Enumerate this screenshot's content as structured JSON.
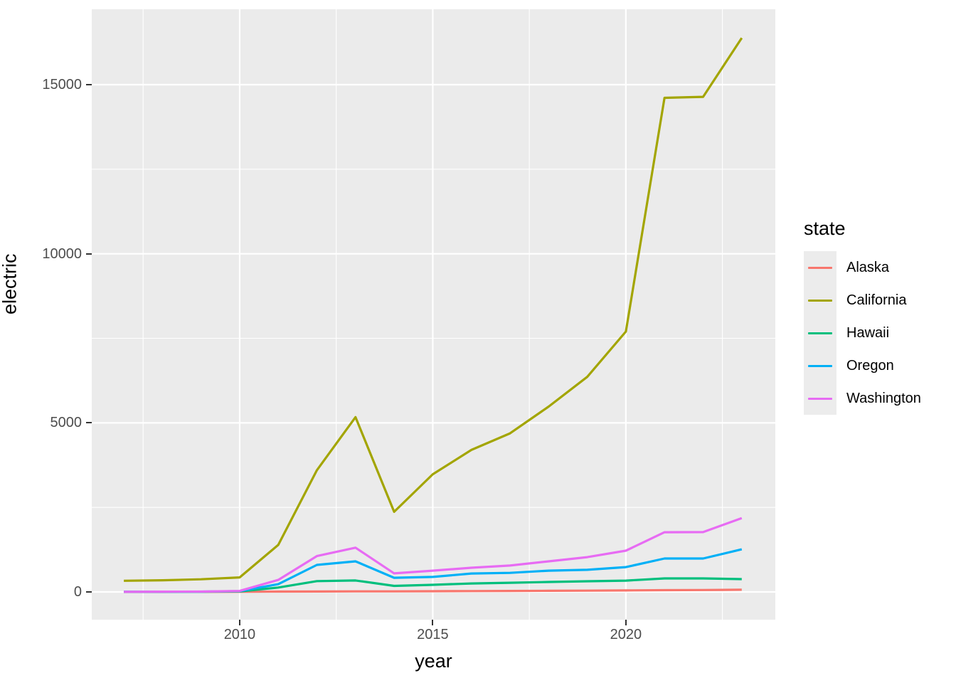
{
  "chart_data": {
    "type": "line",
    "title": "",
    "xlabel": "year",
    "ylabel": "electric",
    "legend_title": "state",
    "legend_position": "right",
    "grid": true,
    "x": [
      2007,
      2008,
      2009,
      2010,
      2011,
      2012,
      2013,
      2014,
      2015,
      2016,
      2017,
      2018,
      2019,
      2020,
      2021,
      2022,
      2023
    ],
    "series": [
      {
        "name": "Alaska",
        "color": "#F8766D",
        "values": [
          0,
          1,
          2,
          5,
          10,
          14,
          18,
          18,
          22,
          26,
          30,
          34,
          38,
          44,
          52,
          58,
          65
        ]
      },
      {
        "name": "California",
        "color": "#A3A500",
        "values": [
          330,
          345,
          375,
          430,
          1390,
          3600,
          5170,
          2370,
          3480,
          4200,
          4690,
          5480,
          6360,
          7700,
          14610,
          14640,
          16380
        ]
      },
      {
        "name": "Hawaii",
        "color": "#00BF7D",
        "values": [
          2,
          3,
          6,
          15,
          130,
          320,
          340,
          180,
          210,
          250,
          272,
          295,
          315,
          335,
          400,
          400,
          380
        ]
      },
      {
        "name": "Oregon",
        "color": "#00B0F6",
        "values": [
          3,
          5,
          8,
          25,
          230,
          800,
          905,
          420,
          445,
          545,
          565,
          630,
          655,
          735,
          990,
          990,
          1260
        ]
      },
      {
        "name": "Washington",
        "color": "#E76BF3",
        "values": [
          5,
          8,
          12,
          30,
          355,
          1060,
          1310,
          550,
          630,
          715,
          780,
          905,
          1030,
          1220,
          1765,
          1770,
          2185
        ]
      }
    ],
    "x_ticks": [
      {
        "value": 2010,
        "label": "2010"
      },
      {
        "value": 2015,
        "label": "2015"
      },
      {
        "value": 2020,
        "label": "2020"
      }
    ],
    "y_ticks": [
      {
        "value": 0,
        "label": "0"
      },
      {
        "value": 5000,
        "label": "5000"
      },
      {
        "value": 10000,
        "label": "10000"
      },
      {
        "value": 15000,
        "label": "15000"
      }
    ],
    "x_minor": [
      2007.5,
      2012.5,
      2017.5,
      2022.5
    ],
    "y_minor": [
      2500,
      7500,
      12500
    ],
    "x_range": [
      2006.17,
      2023.87
    ],
    "y_range": [
      -820,
      17230
    ]
  },
  "theme": {
    "panel_bg": "#EBEBEB",
    "grid_major_color": "#FFFFFF",
    "grid_minor_color": "#FFFFFF",
    "tick_label_color": "#4D4D4D",
    "axis_title_color": "#000000",
    "tick_mark_color": "#333333",
    "legend_key_bg": "#ECECEC",
    "background": "#FFFFFF"
  }
}
